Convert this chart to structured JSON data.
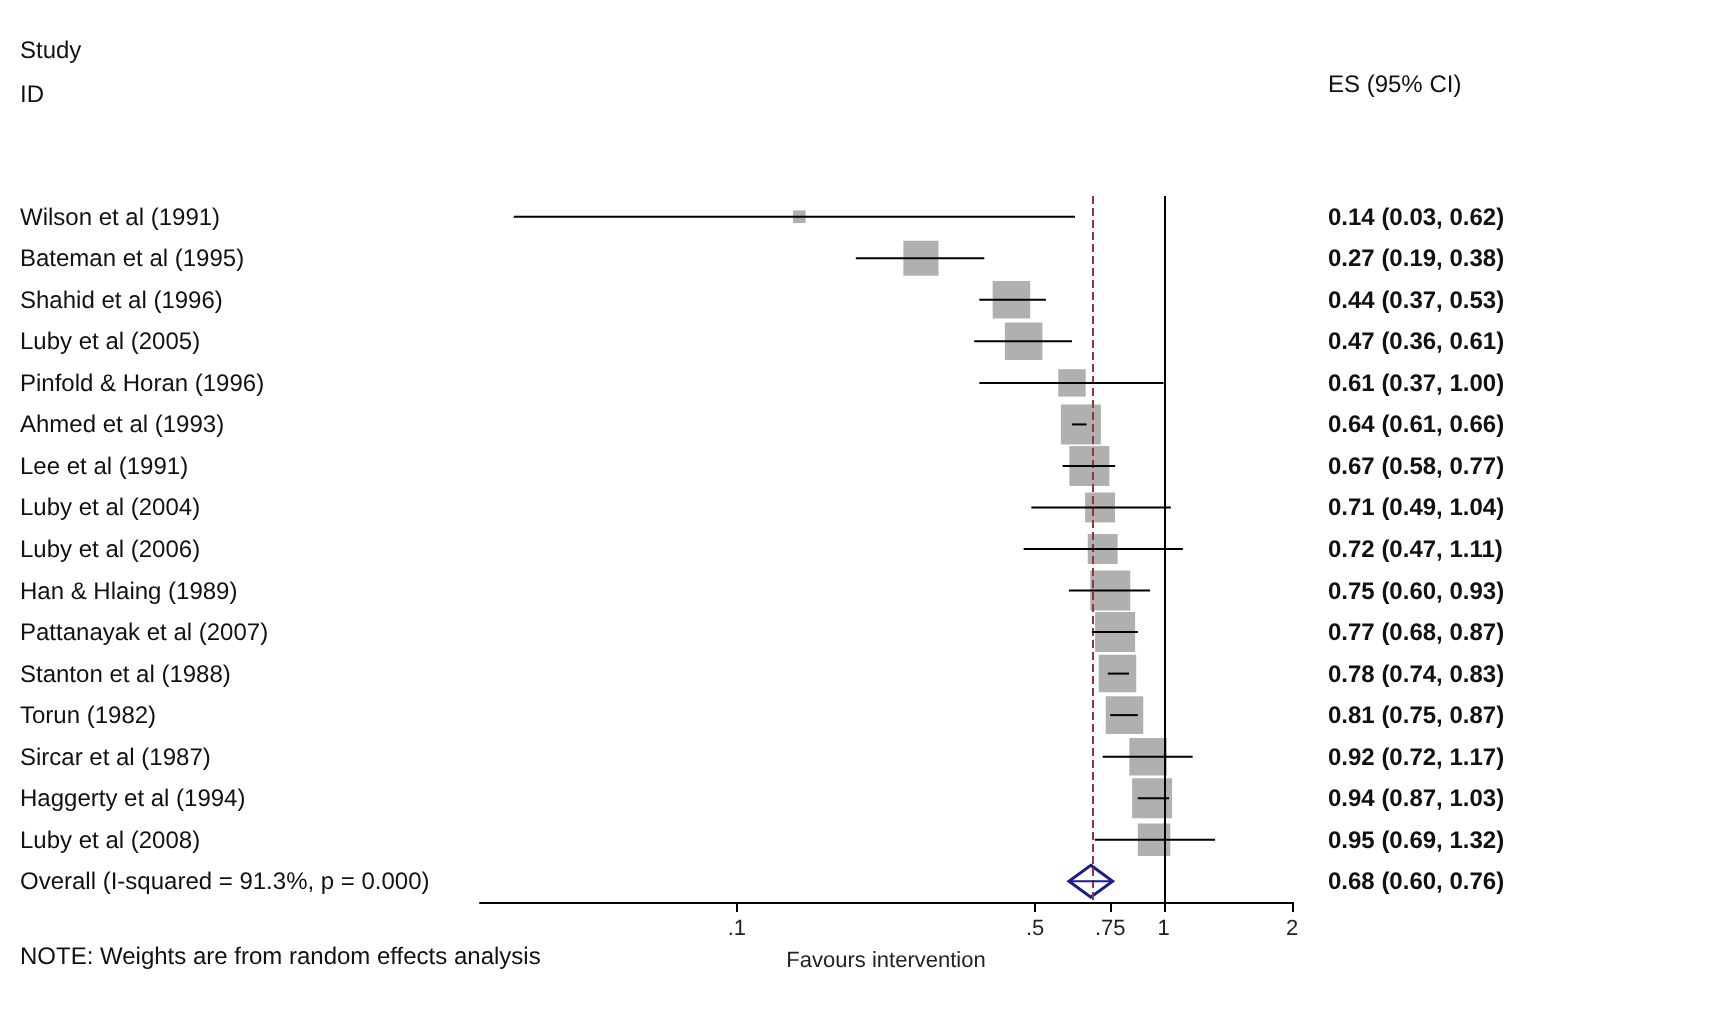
{
  "chart_data": {
    "type": "bubble",
    "orientation": "horizontal",
    "log": "x",
    "ylabel": "Study ID",
    "xlabel": "Favours intervention",
    "categories": [
      "Wilson et al (1991)",
      "Bateman et al (1995)",
      "Shahid et al (1996)",
      "Luby et al (2005)",
      "Pinfold & Horan (1996)",
      "Ahmed et al (1993)",
      "Lee et al (1991)",
      "Luby et al (2004)",
      "Luby et al (2006)",
      "Han & Hlaing (1989)",
      "Pattanayak et al (2007)",
      "Stanton et al (1988)",
      "Torun (1982)",
      "Sircar et al (1987)",
      "Haggerty et al (1994)",
      "Luby et al (2008)",
      "Overall (I-squared = 91.3%, p = 0.000)"
    ],
    "series": [
      {
        "marker": "square",
        "color": "#b0b0b0",
        "values": [
          0.14,
          0.27,
          0.44,
          0.47,
          0.61,
          0.64,
          0.67,
          0.71,
          0.72,
          0.75,
          0.77,
          0.78,
          0.81,
          0.92,
          0.94,
          0.95,
          null
        ],
        "sizes": [
          0.1,
          0.77,
          0.88,
          0.88,
          0.47,
          1,
          1,
          0.56,
          0.56,
          1,
          1,
          0.88,
          0.88,
          0.88,
          1,
          0.66,
          null
        ],
        "errors": [
          [
            0.03,
            0.62
          ],
          [
            0.19,
            0.38
          ],
          [
            0.37,
            0.53
          ],
          [
            0.36,
            0.61
          ],
          [
            0.37,
            1.0
          ],
          [
            0.61,
            0.66
          ],
          [
            0.58,
            0.77
          ],
          [
            0.49,
            1.04
          ],
          [
            0.47,
            1.11
          ],
          [
            0.6,
            0.93
          ],
          [
            0.68,
            0.87
          ],
          [
            0.74,
            0.83
          ],
          [
            0.75,
            0.87
          ],
          [
            0.72,
            1.17
          ],
          [
            0.87,
            1.03
          ],
          [
            0.69,
            1.32
          ],
          null
        ],
        "value_labels": [
          "0.14 (0.03, 0.62)",
          "0.27 (0.19, 0.38)",
          "0.44 (0.37, 0.53)",
          "0.47 (0.36, 0.61)",
          "0.61 (0.37, 1.00)",
          "0.64 (0.61, 0.66)",
          "0.67 (0.58, 0.77)",
          "0.71 (0.49, 1.04)",
          "0.72 (0.47, 1.11)",
          "0.75 (0.60, 0.93)",
          "0.77 (0.68, 0.87)",
          "0.78 (0.74, 0.83)",
          "0.81 (0.75, 0.87)",
          "0.92 (0.72, 1.17)",
          "0.94 (0.87, 1.03)",
          "0.95 (0.69, 1.32)",
          "0.68 (0.60, 0.76)"
        ]
      },
      {
        "type": "scatter",
        "marker": "diamond",
        "color": "#1c1c8c",
        "values": [
          null,
          null,
          null,
          null,
          null,
          null,
          null,
          null,
          null,
          null,
          null,
          null,
          null,
          null,
          null,
          null,
          0.68
        ],
        "errors": [
          null,
          null,
          null,
          null,
          null,
          null,
          null,
          null,
          null,
          null,
          null,
          null,
          null,
          null,
          null,
          null,
          [
            0.6,
            0.76
          ]
        ]
      }
    ],
    "xlim": [
      0.025,
      2
    ],
    "xticks": [
      {
        "value": 0.1,
        "label": ".1"
      },
      {
        "value": 0.5,
        "label": ".5"
      },
      {
        "value": 0.75,
        "label": ".75"
      },
      1,
      2
    ],
    "ref_lines": [
      {
        "axis": "x",
        "value": 1,
        "label": null,
        "color": "#000000",
        "line_style": "solid"
      },
      {
        "axis": "x",
        "value": 0.68,
        "label": null,
        "color": "#8b3a3a",
        "line_style": "dashed"
      }
    ],
    "annotations": [
      "ES (95% CI)",
      "NOTE: Weights are from random effects analysis"
    ],
    "grid": false
  }
}
